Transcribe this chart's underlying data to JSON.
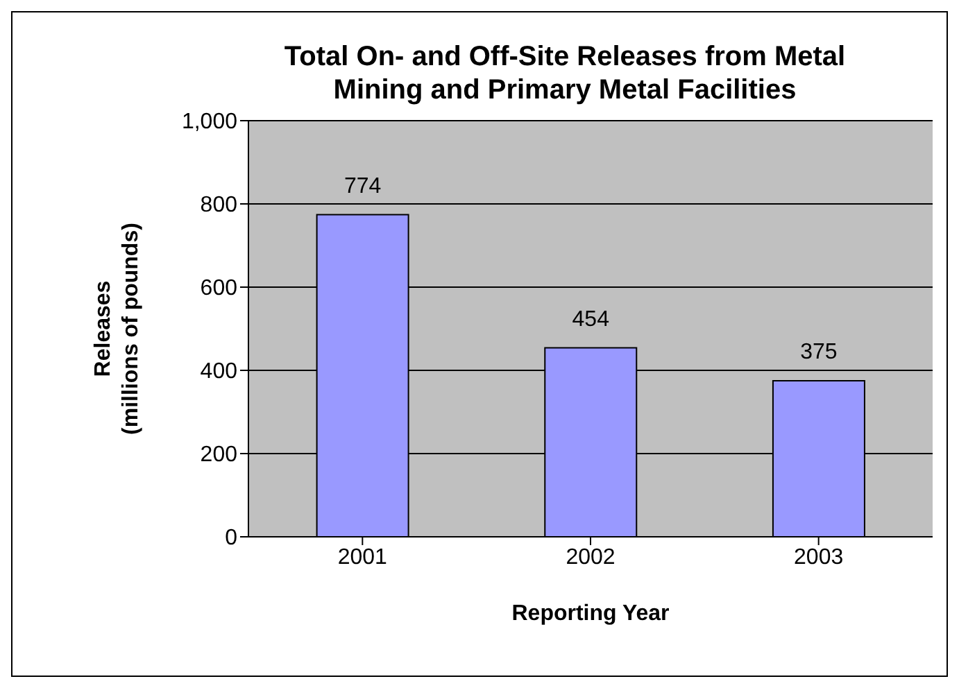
{
  "chart_data": {
    "type": "bar",
    "title": "Total On- and Off-Site Releases from Metal Mining and Primary Metal Facilities",
    "xlabel": "Reporting Year",
    "ylabel": "Releases\n(millions of pounds)",
    "categories": [
      "2001",
      "2002",
      "2003"
    ],
    "values": [
      774,
      454,
      375
    ],
    "color": "#9999ff",
    "ylim": [
      0,
      1000
    ],
    "yticks": [
      0,
      200,
      400,
      600,
      800,
      {
        "value": 1000,
        "label": "1,000"
      }
    ],
    "grid": "y",
    "data_labels": true
  }
}
